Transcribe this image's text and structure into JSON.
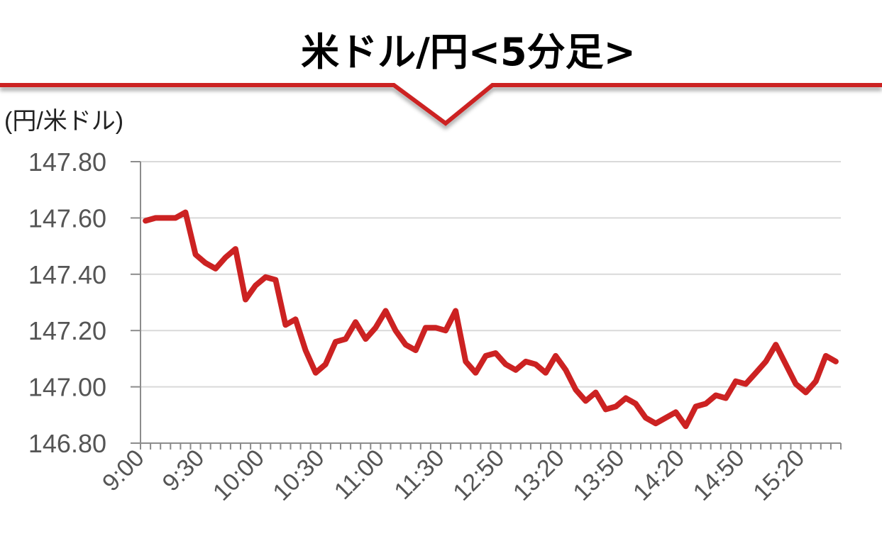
{
  "title": "米ドル/円<5分足>",
  "colors": {
    "accent": "#cc2222",
    "line": "#cc2222",
    "grid": "#d9d9d9",
    "axis": "#8c8c8c"
  },
  "chart_data": {
    "type": "line",
    "title": "米ドル/円<5分足>",
    "ylabel": "(円/米ドル)",
    "xlabel": "",
    "ylim": [
      146.8,
      147.8
    ],
    "yticks": [
      "147.80",
      "147.60",
      "147.40",
      "147.20",
      "147.00",
      "146.80"
    ],
    "ytick_values": [
      147.8,
      147.6,
      147.4,
      147.2,
      147.0,
      146.8
    ],
    "xtick_labels": [
      "9:00",
      "9:30",
      "10:00",
      "10:30",
      "11:00",
      "11:30",
      "12:50",
      "13:20",
      "13:50",
      "14:20",
      "14:50",
      "15:20"
    ],
    "xtick_label_every": 6,
    "grid": true,
    "series": [
      {
        "values": [
          147.59,
          147.6,
          147.6,
          147.6,
          147.62,
          147.47,
          147.44,
          147.42,
          147.46,
          147.49,
          147.31,
          147.36,
          147.39,
          147.38,
          147.22,
          147.24,
          147.13,
          147.05,
          147.08,
          147.16,
          147.17,
          147.23,
          147.17,
          147.21,
          147.27,
          147.2,
          147.15,
          147.13,
          147.21,
          147.21,
          147.2,
          147.27,
          147.09,
          147.05,
          147.11,
          147.12,
          147.08,
          147.06,
          147.09,
          147.08,
          147.05,
          147.11,
          147.06,
          146.99,
          146.95,
          146.98,
          146.92,
          146.93,
          146.96,
          146.94,
          146.89,
          146.87,
          146.89,
          146.91,
          146.86,
          146.93,
          146.94,
          146.97,
          146.96,
          147.02,
          147.01,
          147.05,
          147.09,
          147.15,
          147.08,
          147.01,
          146.98,
          147.02,
          147.11,
          147.09
        ]
      }
    ]
  }
}
